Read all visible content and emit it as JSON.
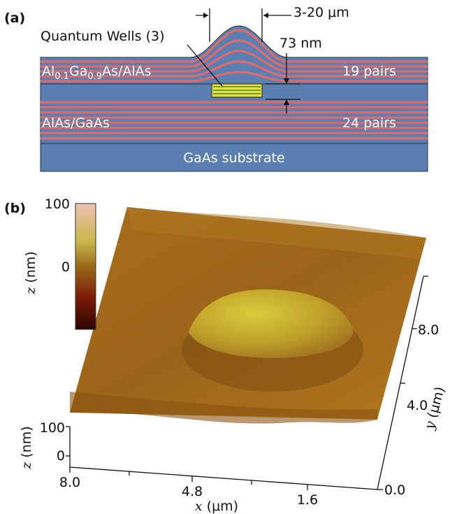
{
  "panel_a": {
    "label": "(a)",
    "qw_label": "Quantum Wells (3)",
    "width_label": "3-20 μm",
    "thickness_label": "73 nm",
    "upper_mirror": {
      "material": [
        "Al",
        "0.1",
        "Ga",
        "0.9",
        "As/AlAs"
      ],
      "pairs": "19 pairs"
    },
    "lower_mirror": {
      "material": "AlAs/GaAs",
      "pairs": "24 pairs"
    },
    "substrate": "GaAs substrate"
  },
  "panel_b": {
    "label": "(b)",
    "colorbar": {
      "ticks": [
        "100",
        "0"
      ],
      "axis_label": [
        "z",
        " (nm)"
      ]
    },
    "z_axis": {
      "ticks": [
        "100",
        "0"
      ],
      "axis_label": [
        "z",
        " (nm)"
      ]
    },
    "x_axis": {
      "ticks": [
        "8.0",
        "4.8",
        "1.6"
      ],
      "axis_label": [
        "x",
        " (μm)"
      ]
    },
    "y_axis": {
      "ticks": [
        "0.0",
        "4.0",
        "8.0"
      ],
      "axis_label": [
        "y",
        " (μm)"
      ]
    }
  }
}
